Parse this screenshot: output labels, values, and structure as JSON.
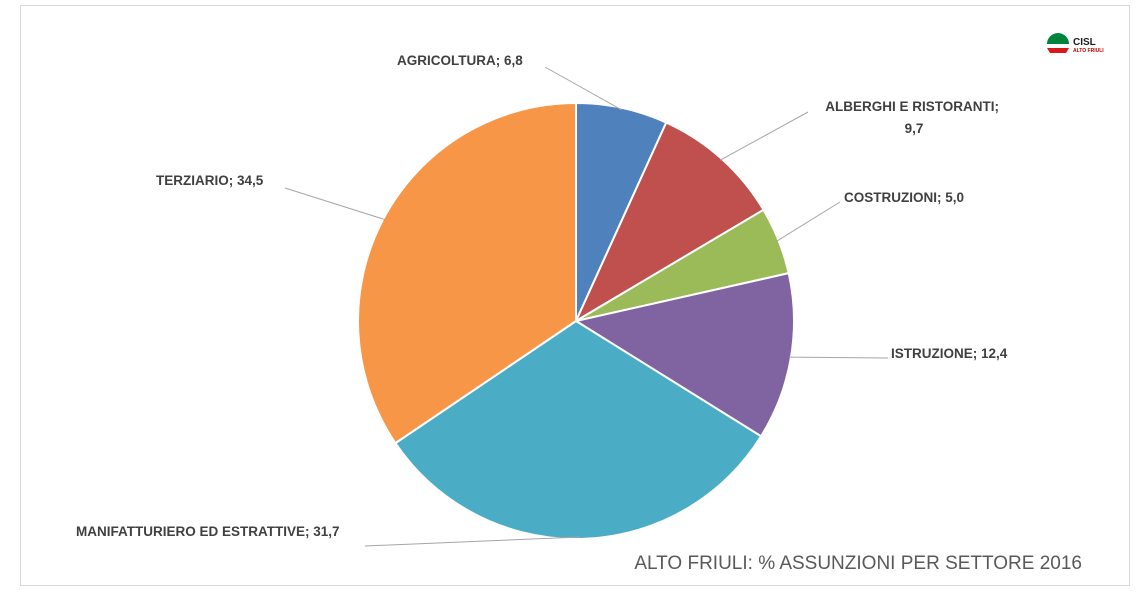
{
  "chart_data": {
    "type": "pie",
    "title": "ALTO FRIULI: % ASSUNZIONI PER SETTORE 2016",
    "slices": [
      {
        "label": "AGRICOLTURA",
        "value": 6.8,
        "display": "6,8",
        "color": "#4f81bd"
      },
      {
        "label": "ALBERGHI E RISTORANTI",
        "value": 9.7,
        "display": "9,7",
        "color": "#c0504d"
      },
      {
        "label": "COSTRUZIONI",
        "value": 5.0,
        "display": "5,0",
        "color": "#9bbb59"
      },
      {
        "label": "ISTRUZIONE",
        "value": 12.4,
        "display": "12,4",
        "color": "#8064a2"
      },
      {
        "label": "MANIFATTURIERO ED ESTRATTIVE",
        "value": 31.7,
        "display": "31,7",
        "color": "#4bacc6"
      },
      {
        "label": "TERZIARIO",
        "value": 34.5,
        "display": "34,5",
        "color": "#f79646"
      }
    ]
  },
  "logo": {
    "name": "CISL",
    "subtitle": "ALTO FRIULI"
  }
}
